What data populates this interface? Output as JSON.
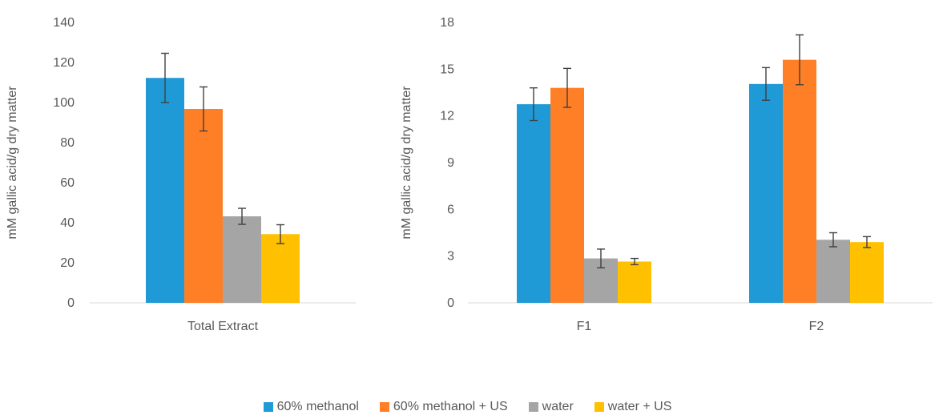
{
  "colors": {
    "series": [
      "#1f9ad6",
      "#ff7f27",
      "#a5a5a5",
      "#ffc000"
    ],
    "axis_text": "#595959",
    "axis_line": "#d9d9d9",
    "error_bar": "#404040"
  },
  "legend": {
    "placement": "bottom",
    "items": [
      "60% methanol",
      "60% methanol + US",
      "water",
      "water + US"
    ]
  },
  "chart_data": [
    {
      "type": "bar",
      "title": "",
      "xlabel": "",
      "ylabel": "mM gallic acid/g dry matter",
      "ylim": [
        0,
        140
      ],
      "yticks": [
        0,
        20,
        40,
        60,
        80,
        100,
        120,
        140
      ],
      "ytick_labels": [
        "0",
        "20",
        "40",
        "60",
        "80",
        "100",
        "120",
        "140"
      ],
      "grid": false,
      "categories": [
        "Total Extract"
      ],
      "series": [
        {
          "name": "60% methanol",
          "values": [
            112.3
          ],
          "errors": [
            12.3
          ]
        },
        {
          "name": "60% methanol + US",
          "values": [
            96.8
          ],
          "errors": [
            11.0
          ]
        },
        {
          "name": "water",
          "values": [
            43.2
          ],
          "errors": [
            4.0
          ]
        },
        {
          "name": "water + US",
          "values": [
            34.3
          ],
          "errors": [
            4.7
          ]
        }
      ]
    },
    {
      "type": "bar",
      "title": "",
      "xlabel": "",
      "ylabel": "mM gallic acid/g dry matter",
      "ylim": [
        0,
        18
      ],
      "yticks": [
        0,
        3,
        6,
        9,
        12,
        15,
        18
      ],
      "ytick_labels": [
        "0",
        "3",
        "6",
        "9",
        "12",
        "15",
        "18"
      ],
      "grid": false,
      "categories": [
        "F1",
        "F2"
      ],
      "series": [
        {
          "name": "60% methanol",
          "values": [
            12.75,
            14.05
          ],
          "errors": [
            1.05,
            1.05
          ]
        },
        {
          "name": "60% methanol + US",
          "values": [
            13.8,
            15.6
          ],
          "errors": [
            1.25,
            1.6
          ]
        },
        {
          "name": "water",
          "values": [
            2.85,
            4.05
          ],
          "errors": [
            0.6,
            0.45
          ]
        },
        {
          "name": "water + US",
          "values": [
            2.65,
            3.9
          ],
          "errors": [
            0.2,
            0.35
          ]
        }
      ]
    }
  ]
}
